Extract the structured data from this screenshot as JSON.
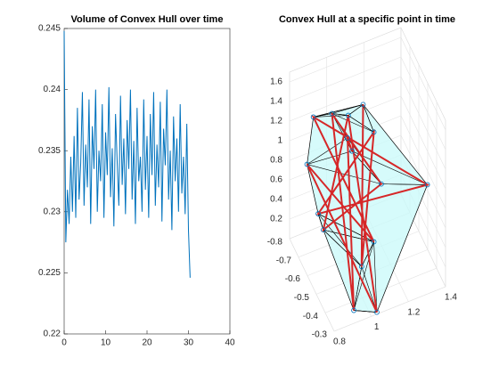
{
  "chart_data": [
    {
      "type": "line",
      "title": "Volume of Convex Hull over time",
      "x": [
        0,
        0.4,
        0.8,
        1.2,
        1.6,
        2,
        2.4,
        2.8,
        3.2,
        3.6,
        4,
        4.4,
        4.8,
        5.2,
        5.6,
        6,
        6.4,
        6.8,
        7.2,
        7.6,
        8,
        8.4,
        8.8,
        9.2,
        9.6,
        10,
        10.4,
        10.8,
        11.2,
        11.6,
        12,
        12.4,
        12.8,
        13.2,
        13.6,
        14,
        14.4,
        14.8,
        15.2,
        15.6,
        16,
        16.4,
        16.8,
        17.2,
        17.6,
        18,
        18.4,
        18.8,
        19.2,
        19.6,
        20,
        20.4,
        20.8,
        21.2,
        21.6,
        22,
        22.4,
        22.8,
        23.2,
        23.6,
        24,
        24.4,
        24.8,
        25.2,
        25.6,
        26,
        26.4,
        26.8,
        27.2,
        27.6,
        28,
        28.4,
        28.8,
        29.2,
        29.6,
        30,
        30.4
      ],
      "values": [
        0.2448,
        0.2275,
        0.2318,
        0.229,
        0.2345,
        0.23,
        0.2362,
        0.2295,
        0.2385,
        0.231,
        0.234,
        0.2398,
        0.2305,
        0.2355,
        0.232,
        0.2392,
        0.229,
        0.237,
        0.2335,
        0.24,
        0.23,
        0.235,
        0.2325,
        0.2388,
        0.2295,
        0.2365,
        0.233,
        0.2402,
        0.2312,
        0.2352,
        0.2288,
        0.238,
        0.234,
        0.2305,
        0.2395,
        0.2322,
        0.236,
        0.2298,
        0.2375,
        0.2335,
        0.24,
        0.231,
        0.2358,
        0.229,
        0.2385,
        0.2325,
        0.2345,
        0.23,
        0.2392,
        0.2318,
        0.2362,
        0.2295,
        0.238,
        0.233,
        0.2398,
        0.2305,
        0.2355,
        0.232,
        0.239,
        0.2292,
        0.2368,
        0.2338,
        0.24,
        0.231,
        0.235,
        0.2285,
        0.2378,
        0.2325,
        0.236,
        0.23,
        0.2388,
        0.2315,
        0.2345,
        0.2298,
        0.2372,
        0.2285,
        0.2246
      ],
      "color": "#0072bd",
      "xlim": [
        0,
        40
      ],
      "xticks": [
        0,
        10,
        20,
        30,
        40
      ],
      "ylim": [
        0.22,
        0.245
      ],
      "yticks": [
        0.22,
        0.225,
        0.23,
        0.235,
        0.24,
        0.245
      ]
    },
    {
      "type": "hull3d",
      "title": "Convex Hull at a specific point in time",
      "x": [
        1.1,
        1.02,
        1.11,
        0.93,
        1.35,
        0.88,
        1.11,
        0.87,
        1.03,
        1.02,
        0.91,
        1.15,
        0.98,
        0.93,
        1.04,
        1.04
      ],
      "y": [
        -0.6,
        -0.45,
        -0.5,
        -0.75,
        -0.4,
        -0.7,
        -0.5,
        -0.75,
        -0.3,
        -0.6,
        -0.65,
        -0.5,
        -0.7,
        -0.35,
        -0.65,
        -0.6
      ],
      "z": [
        1.52,
        0.21,
        1.42,
        0.25,
        0.89,
        1.37,
        0.3,
        0.8,
        0.02,
        1.47,
        0.29,
        0.86,
        1.33,
        0.02,
        1.13,
        1.09
      ],
      "marker_color": "#0072bd",
      "line_color": "#d62728",
      "hull_color": "#c8fafa",
      "xlim": [
        0.8,
        1.4
      ],
      "xticks": [
        0.8,
        1,
        1.2,
        1.4
      ],
      "ylim": [
        -0.8,
        -0.3
      ],
      "yticks": [
        -0.8,
        -0.7,
        -0.6,
        -0.5,
        -0.4,
        -0.3
      ],
      "zlim": [
        0,
        1.7
      ],
      "zticks": [
        0.2,
        0.4,
        0.6,
        0.8,
        1,
        1.2,
        1.4,
        1.6
      ]
    }
  ]
}
